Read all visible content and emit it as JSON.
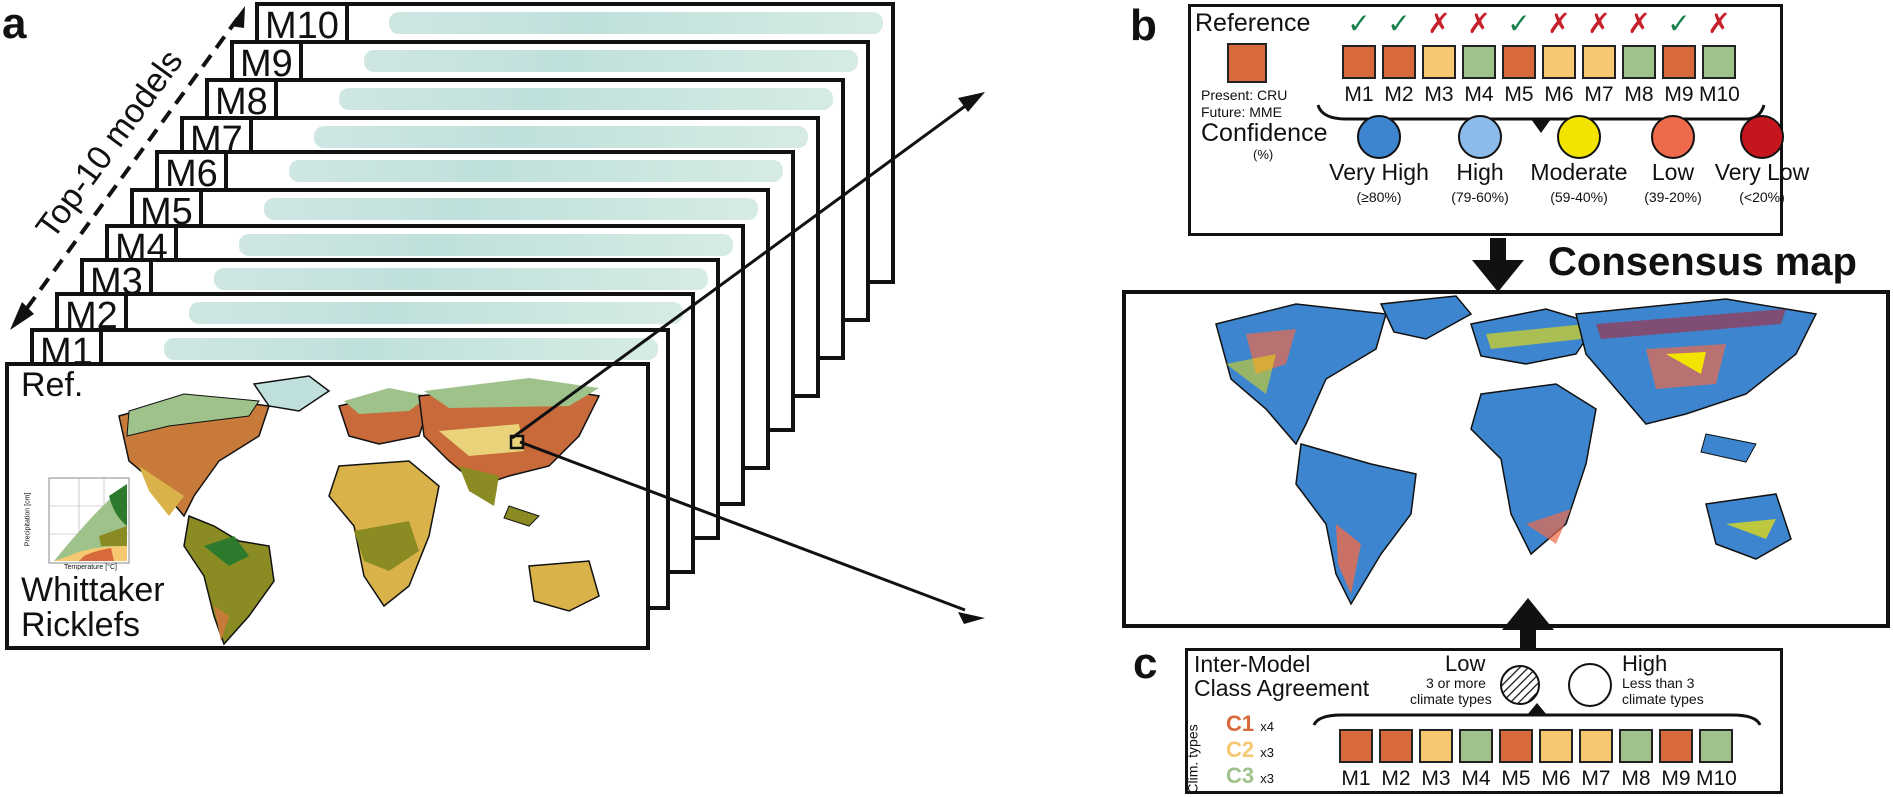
{
  "panel_a": {
    "letter": "a",
    "axis_label": "Top-10 models",
    "models": [
      "M1",
      "M2",
      "M3",
      "M4",
      "M5",
      "M6",
      "M7",
      "M8",
      "M9",
      "M10"
    ],
    "reference_label": "Ref.",
    "scheme_line1": "Whittaker",
    "scheme_line2": "Ricklefs",
    "inset_xlabel": "Temperature [°C]",
    "inset_ylabel": "Precipitation [cm]"
  },
  "panel_b": {
    "letter": "b",
    "reference_title": "Reference",
    "present_note": "Present: CRU",
    "future_note": "Future: MME",
    "models": [
      "M1",
      "M2",
      "M3",
      "M4",
      "M5",
      "M6",
      "M7",
      "M8",
      "M9",
      "M10"
    ],
    "agreement_marks": [
      "✓",
      "✓",
      "✗",
      "✗",
      "✓",
      "✗",
      "✗",
      "✗",
      "✓",
      "✗"
    ],
    "confidence_title": "Confidence",
    "confidence_unit": "(%)",
    "levels": [
      {
        "name": "Very High",
        "range": "(≥80%)",
        "color": "#3d86cf"
      },
      {
        "name": "High",
        "range": "(79-60%)",
        "color": "#8bbbe8"
      },
      {
        "name": "Moderate",
        "range": "(59-40%)",
        "color": "#f3e400"
      },
      {
        "name": "Low",
        "range": "(39-20%)",
        "color": "#ee6a4a"
      },
      {
        "name": "Very Low",
        "range": "(<20%)",
        "color": "#c4161c"
      }
    ]
  },
  "consensus_title": "Consensus map",
  "panel_c": {
    "letter": "c",
    "title_line1": "Inter-Model",
    "title_line2": "Class Agreement",
    "low_label": "Low",
    "low_desc1": "3 or more",
    "low_desc2": "climate types",
    "high_label": "High",
    "high_desc1": "Less than 3",
    "high_desc2": "climate types",
    "clim_types_label": "Clim. types",
    "classes": [
      {
        "name": "C1",
        "count": "x4",
        "color": "#d8693b"
      },
      {
        "name": "C2",
        "count": "x3",
        "color": "#f6c970"
      },
      {
        "name": "C3",
        "count": "x3",
        "color": "#9fc28b"
      }
    ],
    "models": [
      "M1",
      "M2",
      "M3",
      "M4",
      "M5",
      "M6",
      "M7",
      "M8",
      "M9",
      "M10"
    ]
  },
  "colors": {
    "c1": "#d8693b",
    "c2": "#f6c970",
    "c3": "#9fc28b",
    "check": "#17814b",
    "cross": "#c8202a",
    "consensus_blue": "#3d86cf"
  }
}
